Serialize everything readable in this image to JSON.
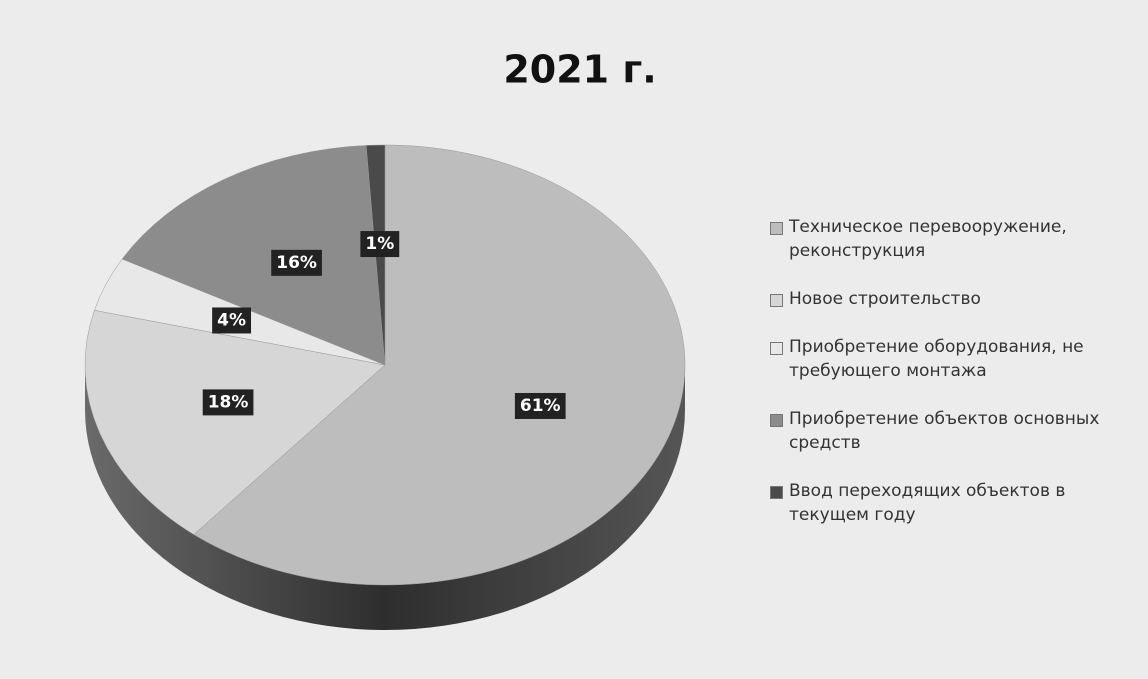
{
  "chart_data": {
    "type": "pie",
    "title": "2021 г.",
    "categories": [
      "Техническое перевооружение, реконструкция",
      "Новое строительство",
      "Приобретение оборудования, не требующего монтажа",
      "Приобретение объектов основных средств",
      "Ввод переходящих объектов в текущем году"
    ],
    "values": [
      61,
      18,
      4,
      16,
      1
    ],
    "value_labels": [
      "61%",
      "18%",
      "4%",
      "16%",
      "1%"
    ],
    "colors": [
      "#bdbdbd",
      "#d6d6d6",
      "#e8e8e8",
      "#8c8c8c",
      "#4a4a4a"
    ],
    "legend": "right"
  }
}
